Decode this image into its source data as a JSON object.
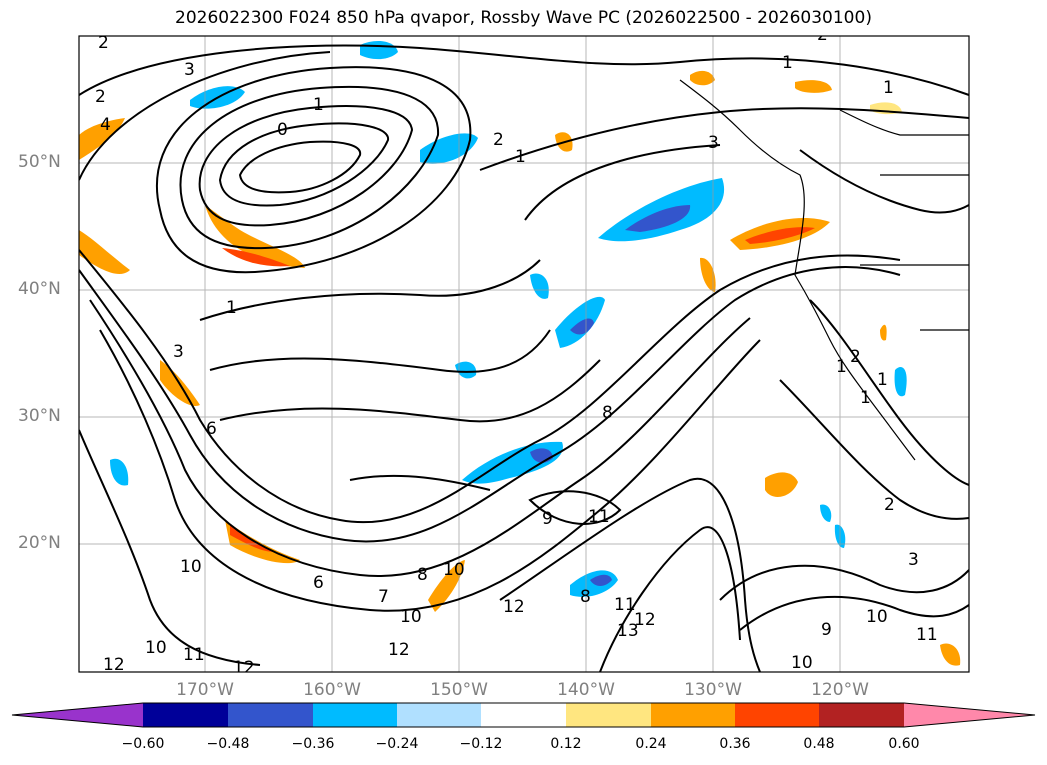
{
  "title": "2026022300 F024 850 hPa qvapor, Rossby Wave PC (2026022500 - 2026030100)",
  "lat_labels": [
    "50°N",
    "40°N",
    "30°N",
    "20°N"
  ],
  "lon_labels": [
    "170°W",
    "160°W",
    "150°W",
    "140°W",
    "130°W",
    "120°W"
  ],
  "colorbar": {
    "ticks": [
      "−0.60",
      "−0.48",
      "−0.36",
      "−0.24",
      "−0.12",
      "0.12",
      "0.24",
      "0.36",
      "0.48",
      "0.60"
    ],
    "colors": [
      "#9933cc",
      "#000099",
      "#3355cc",
      "#00bbff",
      "#b0e0ff",
      "#ffffff",
      "#ffe680",
      "#ffa000",
      "#ff4400",
      "#b22222",
      "#ff88aa"
    ]
  },
  "contour_labels": [
    "2",
    "3",
    "2",
    "1",
    "0",
    "1",
    "2",
    "1",
    "3",
    "1",
    "1",
    "3",
    "2",
    "4",
    "6",
    "8",
    "9",
    "10",
    "11",
    "12",
    "10",
    "11",
    "12",
    "10",
    "12",
    "6",
    "8",
    "7",
    "10",
    "12",
    "8",
    "11",
    "12",
    "13",
    "10",
    "9",
    "10",
    "11",
    "3",
    "2",
    "1",
    "1",
    "2",
    "1"
  ]
}
